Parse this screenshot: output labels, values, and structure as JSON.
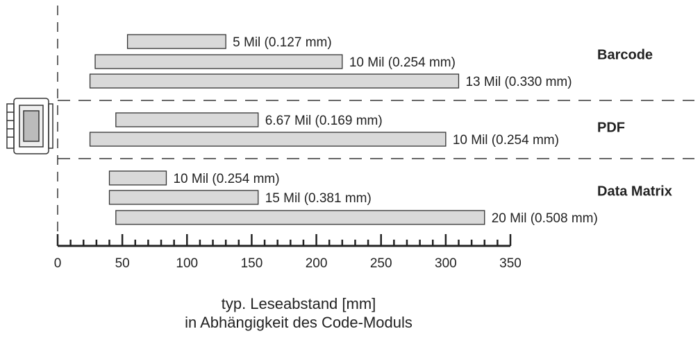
{
  "chart_data": {
    "type": "range-bar",
    "xlabel": [
      "typ. Leseabstand [mm]",
      "in Abhängigkeit des Code-Moduls"
    ],
    "xlim": [
      0,
      350
    ],
    "xticks": [
      0,
      50,
      100,
      150,
      200,
      250,
      300,
      350
    ],
    "xminorticks": [
      10,
      20,
      30,
      40,
      60,
      70,
      80,
      90,
      110,
      120,
      130,
      140,
      160,
      170,
      180,
      190,
      210,
      220,
      230,
      240,
      260,
      270,
      280,
      290,
      310,
      320,
      330,
      340
    ],
    "color": "#d9d9d9",
    "groups": [
      {
        "name": "Barcode",
        "labels": [
          "5 Mil (0.127 mm)",
          "10 Mil (0.254 mm)",
          "13 Mil (0.330 mm)"
        ],
        "starts": [
          54,
          29,
          25
        ],
        "ends": [
          130,
          220,
          310
        ]
      },
      {
        "name": "PDF",
        "labels": [
          "6.67 Mil (0.169 mm)",
          "10 Mil (0.254 mm)"
        ],
        "starts": [
          45,
          25
        ],
        "ends": [
          155,
          300
        ]
      },
      {
        "name": "Data Matrix",
        "labels": [
          "10 Mil (0.254 mm)",
          "15 Mil (0.381 mm)",
          "20 Mil (0.508 mm)"
        ],
        "starts": [
          40,
          40,
          45
        ],
        "ends": [
          84,
          155,
          330
        ]
      }
    ]
  }
}
